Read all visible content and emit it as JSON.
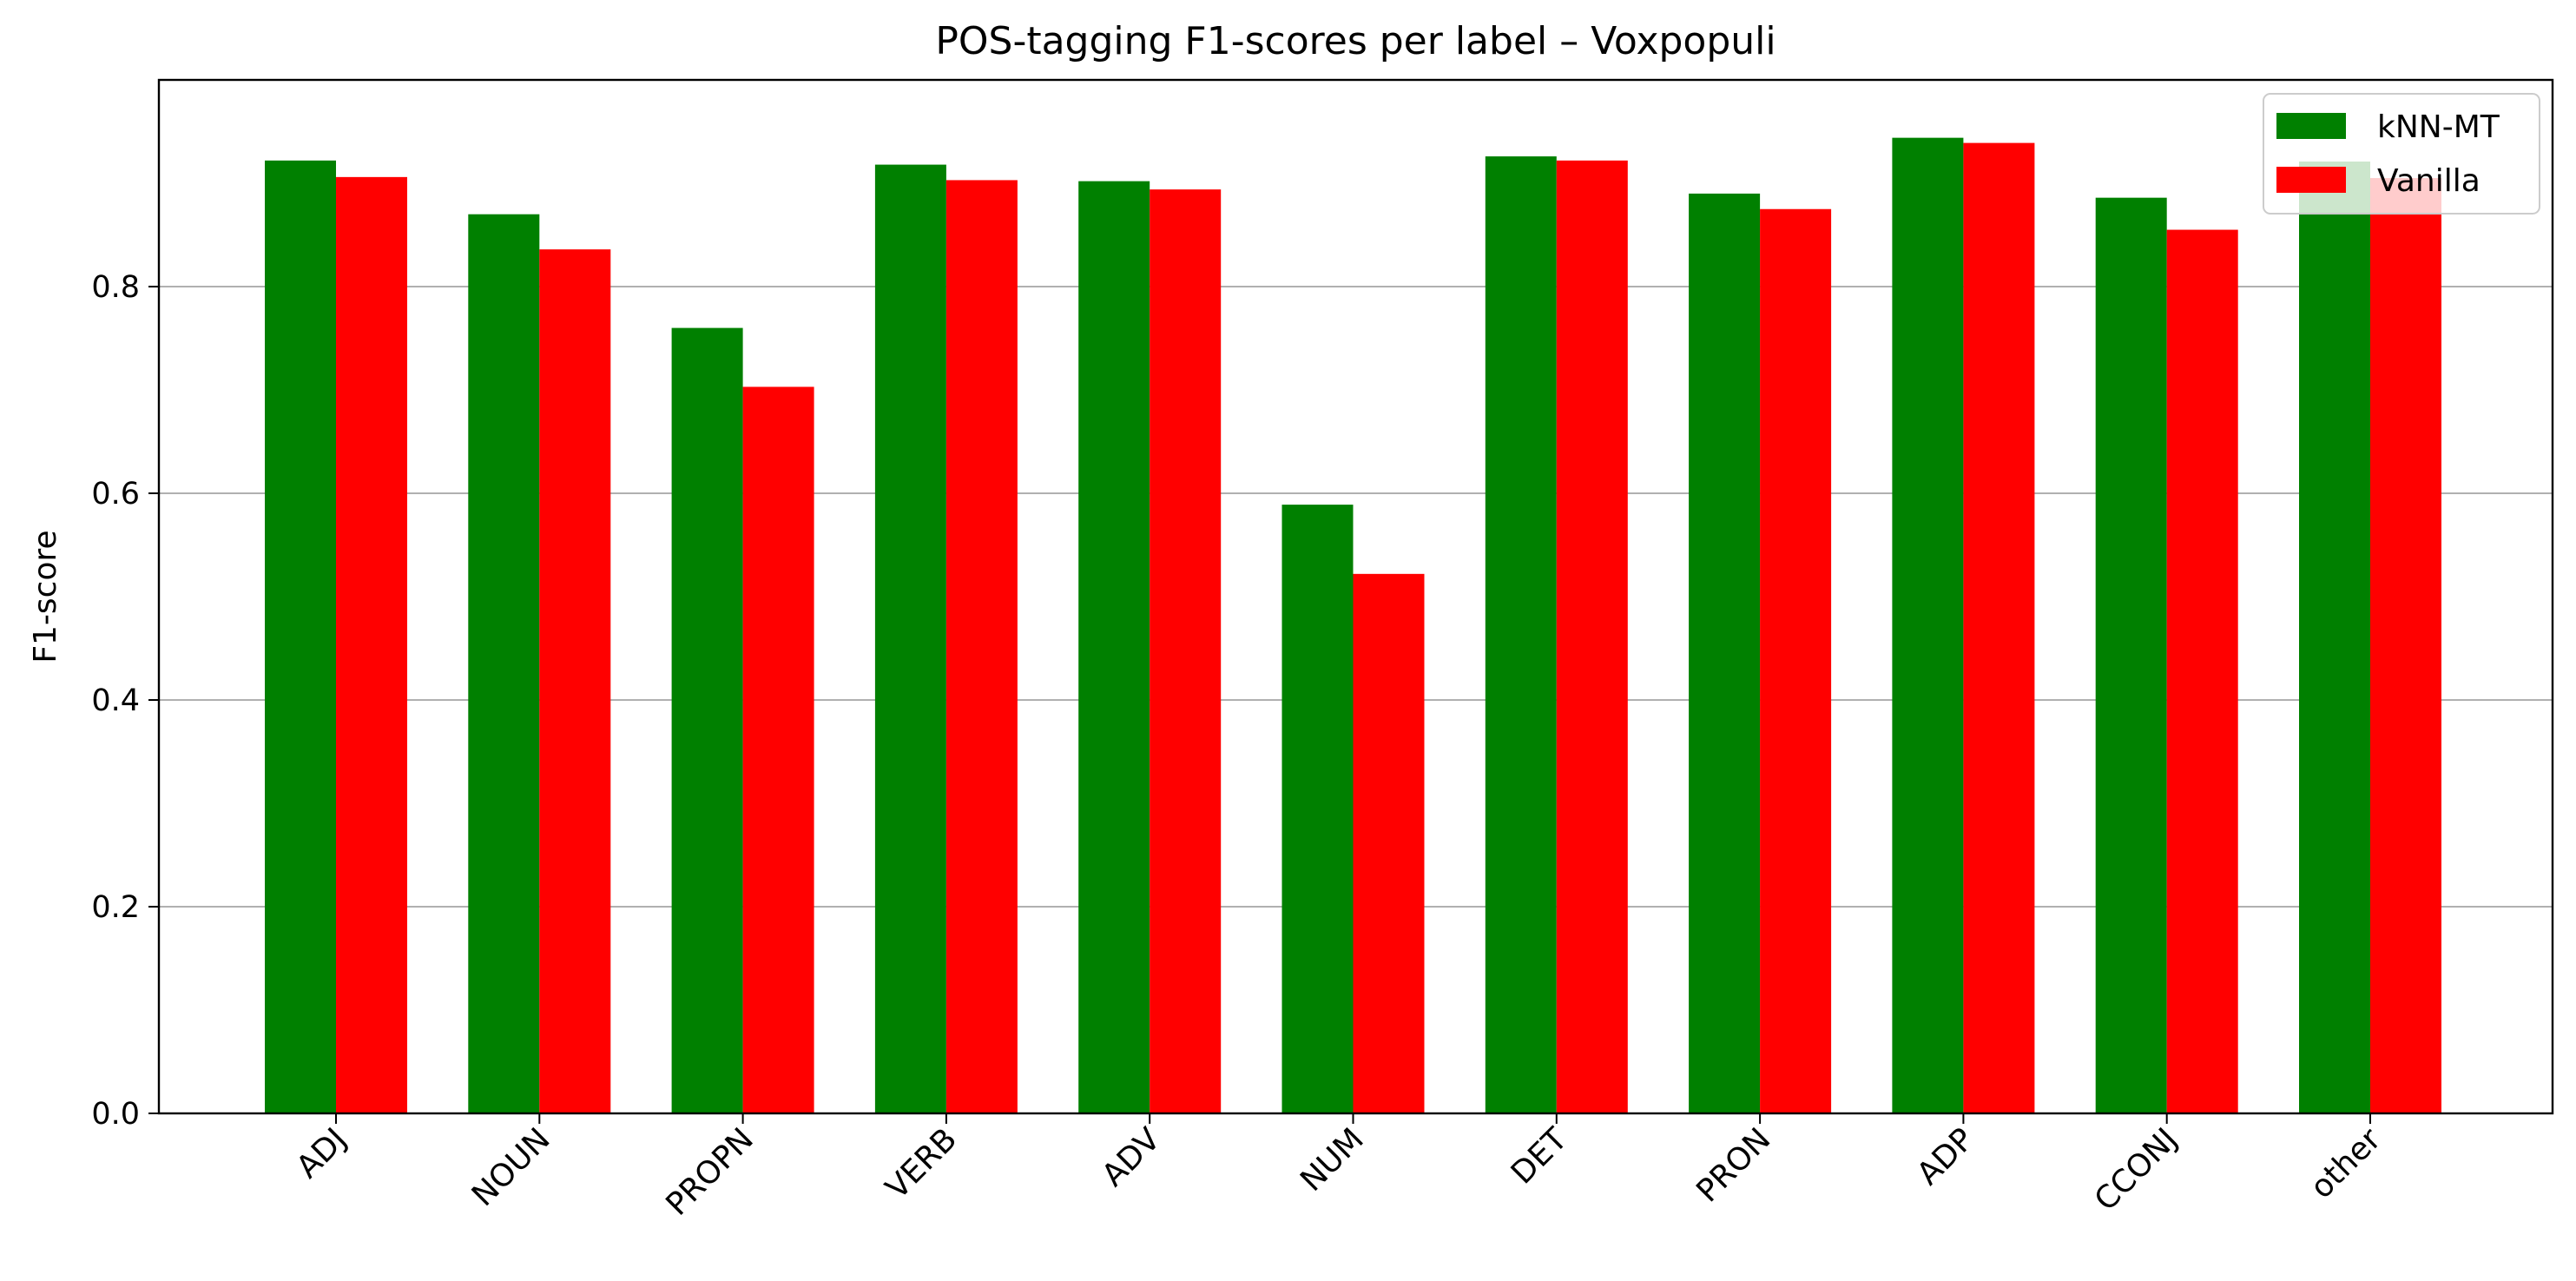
{
  "chart_data": {
    "type": "bar",
    "title": "POS-tagging F1-scores per label – Voxpopuli",
    "xlabel": "",
    "ylabel": "F1-score",
    "ylim": [
      0,
      1.0
    ],
    "yticks": [
      0.0,
      0.2,
      0.4,
      0.6,
      0.8
    ],
    "ytick_labels": [
      "0.0",
      "0.2",
      "0.4",
      "0.6",
      "0.8"
    ],
    "grid": "horizontal",
    "legend_position": "top-right",
    "categories": [
      "ADJ",
      "NOUN",
      "PROPN",
      "VERB",
      "ADV",
      "NUM",
      "DET",
      "PRON",
      "ADP",
      "CCONJ",
      "other"
    ],
    "series": [
      {
        "name": "kNN-MT",
        "color": "#008000",
        "values": [
          0.922,
          0.87,
          0.76,
          0.918,
          0.902,
          0.589,
          0.926,
          0.89,
          0.944,
          0.886,
          0.921
        ]
      },
      {
        "name": "Vanilla",
        "color": "#ff0000",
        "values": [
          0.906,
          0.836,
          0.703,
          0.903,
          0.894,
          0.522,
          0.922,
          0.875,
          0.939,
          0.855,
          0.905
        ]
      }
    ]
  }
}
